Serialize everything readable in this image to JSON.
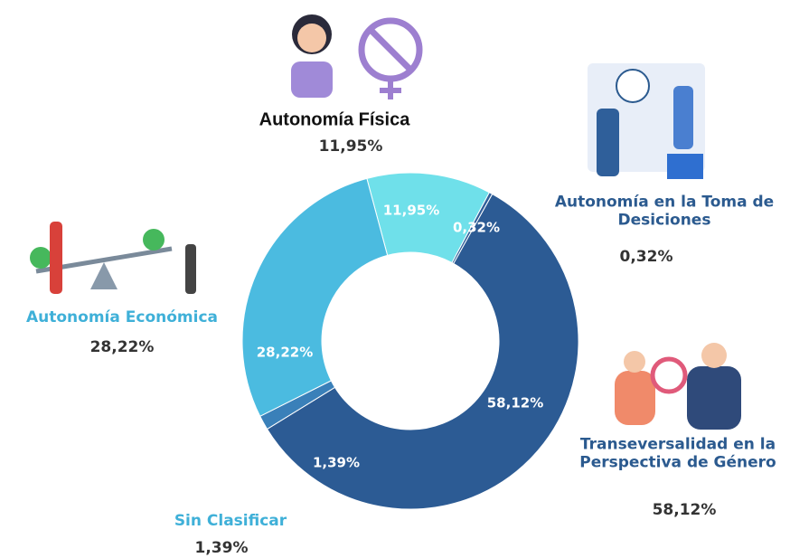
{
  "chart_data": {
    "type": "donut",
    "categories": [
      "Autonomía Física",
      "Autonomía en la Toma de Desiciones",
      "Transeversalidad en la Perspectiva de Género",
      "Sin Clasificar",
      "Autonomía Económica"
    ],
    "values": [
      11.95,
      0.32,
      58.12,
      1.39,
      28.22
    ],
    "value_labels": [
      "11,95%",
      "0,32%",
      "58,12%",
      "1,39%",
      "28,22%"
    ],
    "colors": [
      "#6fe0ea",
      "#2f5f9a",
      "#2c5b94",
      "#3a80b9",
      "#4bbbe0"
    ]
  }
}
